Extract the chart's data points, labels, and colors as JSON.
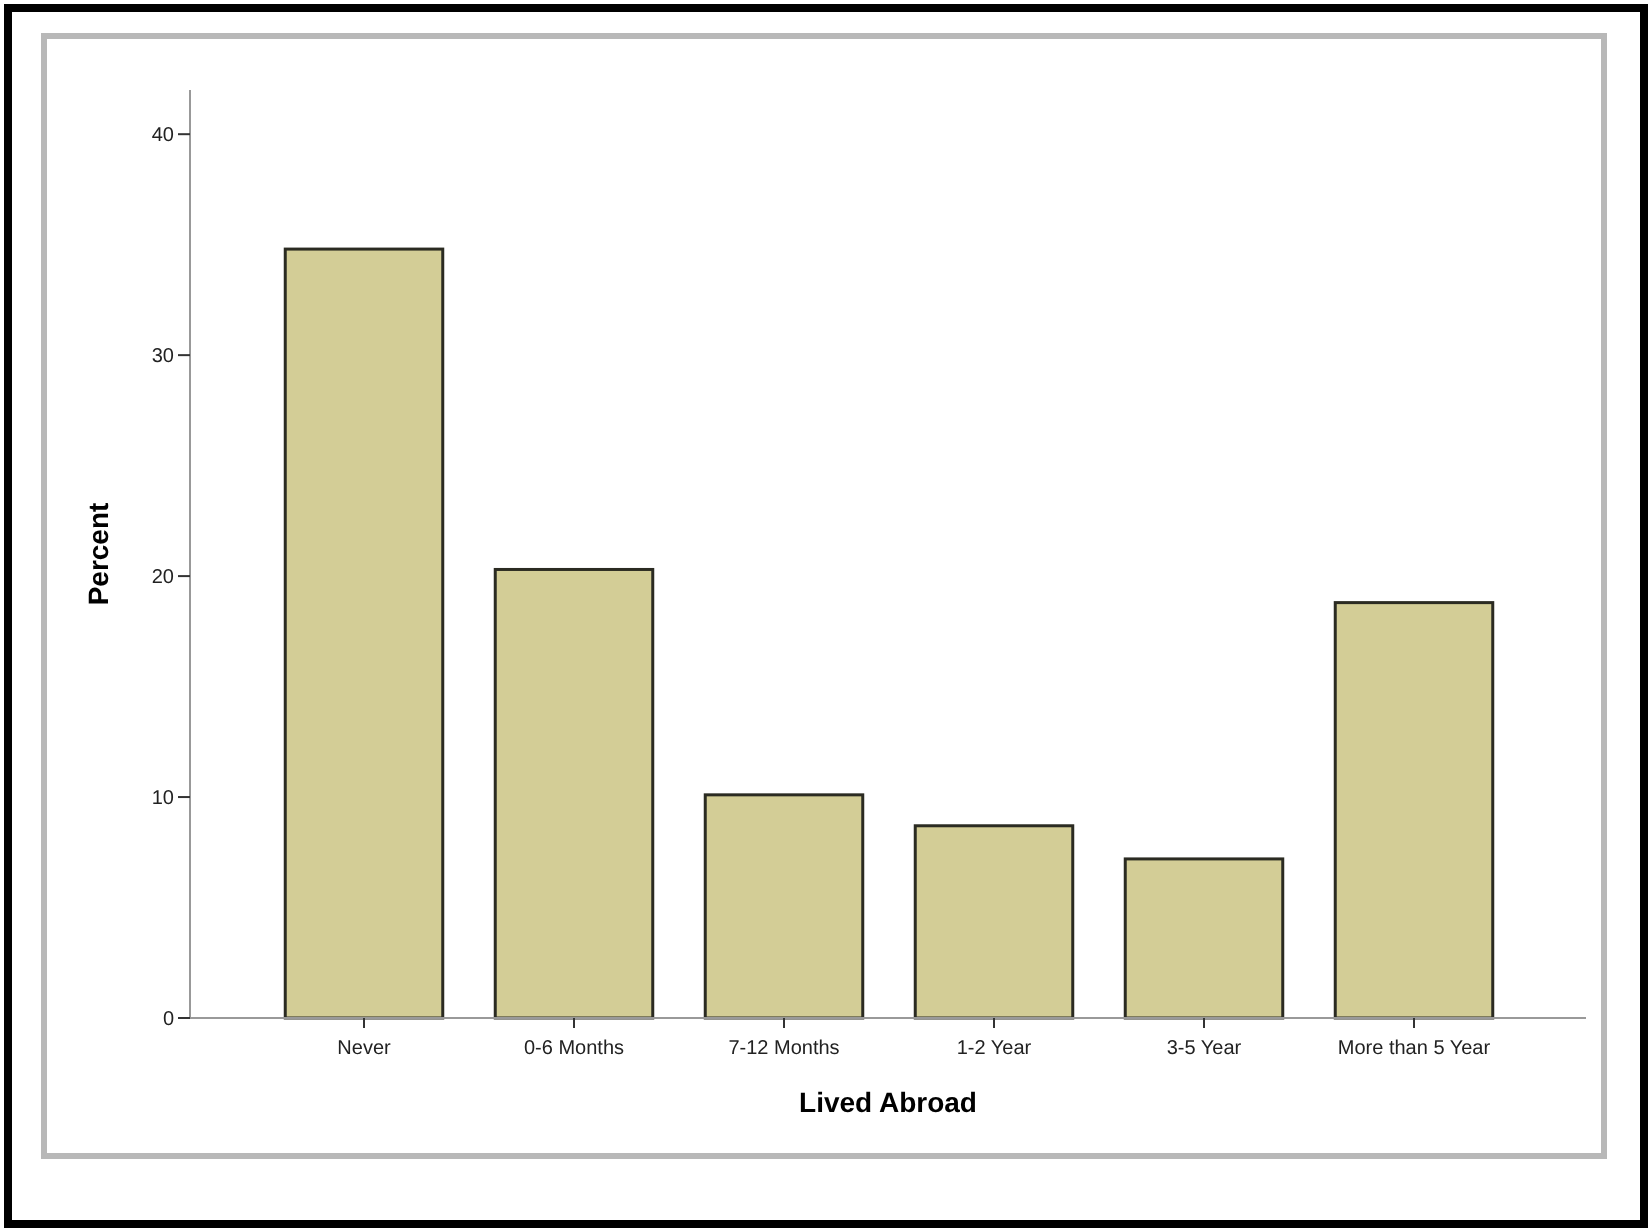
{
  "chart_data": {
    "type": "bar",
    "xlabel": "Lived Abroad",
    "ylabel": "Percent",
    "categories": [
      "Never",
      "0-6 Months",
      "7-12 Months",
      "1-2 Year",
      "3-5 Year",
      "More than 5 Year"
    ],
    "values": [
      34.8,
      20.3,
      10.1,
      8.7,
      7.2,
      18.8
    ],
    "color": "#d3cd96",
    "ylim": [
      0,
      42
    ],
    "yticks": [
      0,
      10,
      20,
      30,
      40
    ]
  }
}
